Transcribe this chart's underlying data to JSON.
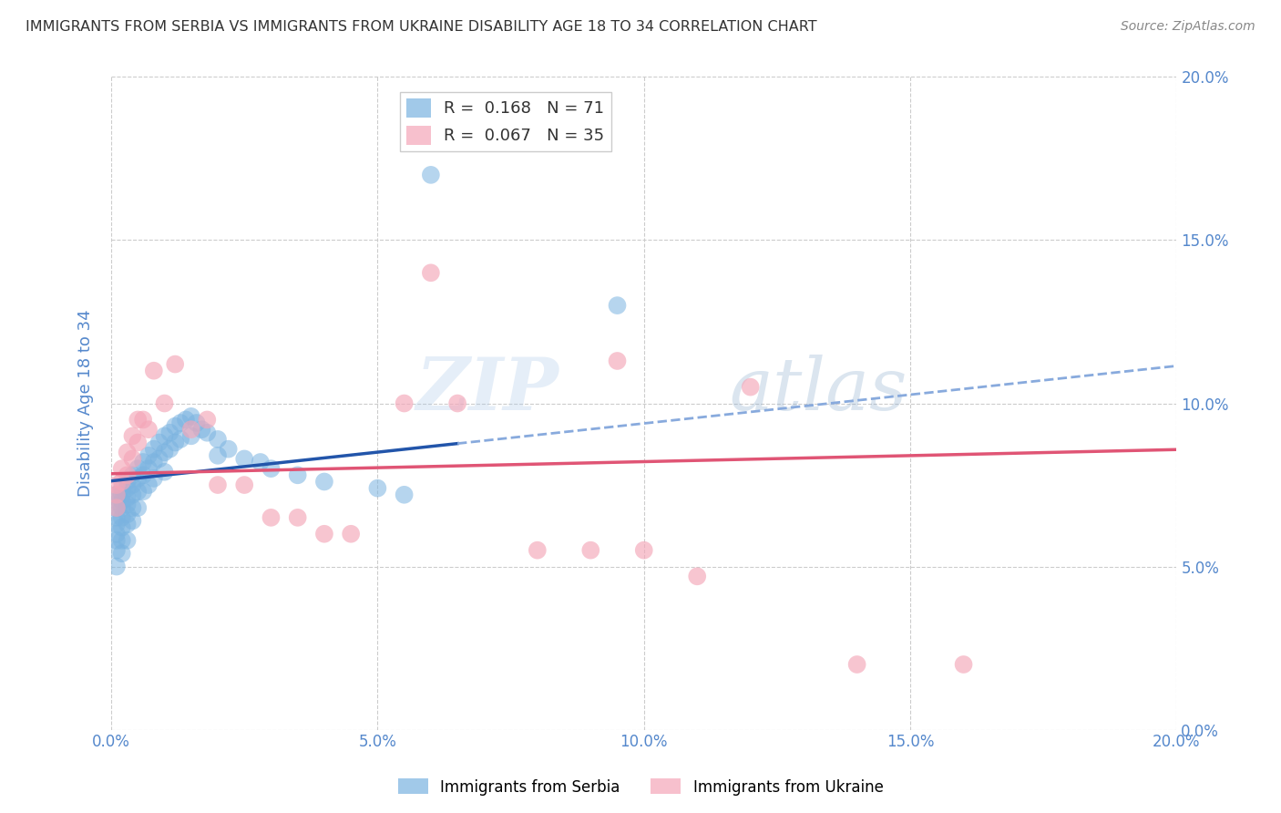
{
  "title": "IMMIGRANTS FROM SERBIA VS IMMIGRANTS FROM UKRAINE DISABILITY AGE 18 TO 34 CORRELATION CHART",
  "source": "Source: ZipAtlas.com",
  "ylabel": "Disability Age 18 to 34",
  "xlim": [
    0.0,
    0.2
  ],
  "ylim": [
    0.0,
    0.2
  ],
  "ytick_values": [
    0.0,
    0.05,
    0.1,
    0.15,
    0.2
  ],
  "serbia_color": "#7ab3e0",
  "ukraine_color": "#f4a6b8",
  "trend_serbia_color": "#2255aa",
  "trend_ukraine_color": "#e05575",
  "dashed_color": "#88aadd",
  "serbia_R": 0.168,
  "serbia_N": 71,
  "ukraine_R": 0.067,
  "ukraine_N": 35,
  "serbia_scatter_x": [
    0.001,
    0.001,
    0.001,
    0.001,
    0.001,
    0.001,
    0.001,
    0.001,
    0.001,
    0.002,
    0.002,
    0.002,
    0.002,
    0.002,
    0.002,
    0.002,
    0.002,
    0.003,
    0.003,
    0.003,
    0.003,
    0.003,
    0.003,
    0.003,
    0.004,
    0.004,
    0.004,
    0.004,
    0.004,
    0.005,
    0.005,
    0.005,
    0.005,
    0.006,
    0.006,
    0.006,
    0.007,
    0.007,
    0.007,
    0.008,
    0.008,
    0.008,
    0.009,
    0.009,
    0.01,
    0.01,
    0.01,
    0.011,
    0.011,
    0.012,
    0.012,
    0.013,
    0.013,
    0.014,
    0.015,
    0.015,
    0.016,
    0.017,
    0.018,
    0.02,
    0.02,
    0.022,
    0.025,
    0.028,
    0.03,
    0.035,
    0.04,
    0.05,
    0.055,
    0.06,
    0.095
  ],
  "serbia_scatter_y": [
    0.072,
    0.07,
    0.068,
    0.065,
    0.063,
    0.06,
    0.058,
    0.055,
    0.05,
    0.074,
    0.072,
    0.07,
    0.068,
    0.065,
    0.062,
    0.058,
    0.054,
    0.076,
    0.074,
    0.071,
    0.069,
    0.066,
    0.063,
    0.058,
    0.078,
    0.075,
    0.072,
    0.068,
    0.064,
    0.08,
    0.077,
    0.073,
    0.068,
    0.082,
    0.078,
    0.073,
    0.084,
    0.08,
    0.075,
    0.086,
    0.082,
    0.077,
    0.088,
    0.083,
    0.09,
    0.085,
    0.079,
    0.091,
    0.086,
    0.093,
    0.088,
    0.094,
    0.089,
    0.095,
    0.096,
    0.09,
    0.094,
    0.092,
    0.091,
    0.089,
    0.084,
    0.086,
    0.083,
    0.082,
    0.08,
    0.078,
    0.076,
    0.074,
    0.072,
    0.17,
    0.13
  ],
  "ukraine_scatter_x": [
    0.001,
    0.001,
    0.001,
    0.002,
    0.002,
    0.003,
    0.003,
    0.004,
    0.004,
    0.005,
    0.005,
    0.006,
    0.007,
    0.008,
    0.01,
    0.012,
    0.015,
    0.018,
    0.02,
    0.025,
    0.03,
    0.035,
    0.04,
    0.045,
    0.055,
    0.06,
    0.065,
    0.08,
    0.09,
    0.095,
    0.1,
    0.11,
    0.12,
    0.14,
    0.16
  ],
  "ukraine_scatter_y": [
    0.075,
    0.072,
    0.068,
    0.08,
    0.076,
    0.085,
    0.078,
    0.09,
    0.083,
    0.095,
    0.088,
    0.095,
    0.092,
    0.11,
    0.1,
    0.112,
    0.092,
    0.095,
    0.075,
    0.075,
    0.065,
    0.065,
    0.06,
    0.06,
    0.1,
    0.14,
    0.1,
    0.055,
    0.055,
    0.113,
    0.055,
    0.047,
    0.105,
    0.02,
    0.02
  ],
  "watermark_zip": "ZIP",
  "watermark_atlas": "atlas",
  "background_color": "#ffffff",
  "title_color": "#333333",
  "axis_label_color": "#5588cc",
  "tick_color": "#5588cc",
  "grid_color": "#cccccc",
  "legend_serbia_label": "R =  0.168   N = 71",
  "legend_ukraine_label": "R =  0.067   N = 35"
}
